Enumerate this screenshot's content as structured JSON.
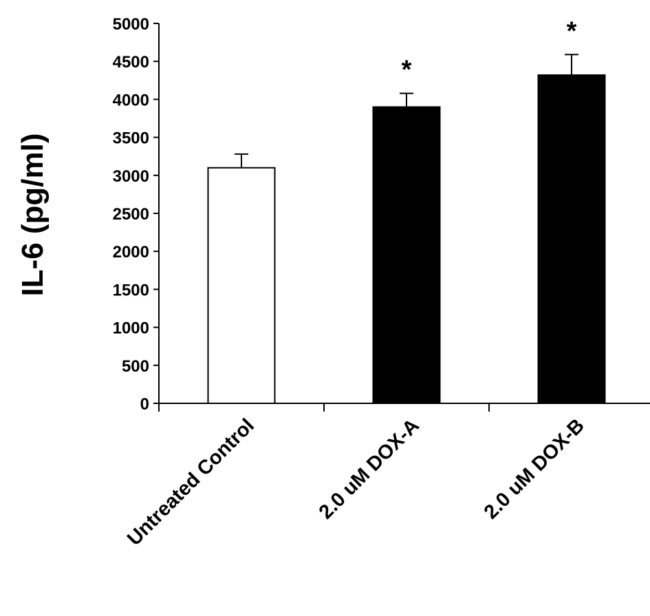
{
  "chart_data": {
    "type": "bar",
    "title": "",
    "xlabel": "",
    "ylabel": "IL-6 (pg/ml)",
    "ylim": [
      0,
      5000
    ],
    "yticks": [
      0,
      500,
      1000,
      1500,
      2000,
      2500,
      3000,
      3500,
      4000,
      4500,
      5000
    ],
    "grid": false,
    "categories": [
      "Untreated Control",
      "2.0 uM DOX-A",
      "2.0 uM DOX-B"
    ],
    "values": [
      3100,
      3900,
      4320
    ],
    "error_upper": [
      180,
      180,
      270
    ],
    "bar_colors": [
      "#ffffff",
      "#000000",
      "#000000"
    ],
    "bar_edge_color": "#000000",
    "significance": [
      "",
      "*",
      "*"
    ]
  }
}
